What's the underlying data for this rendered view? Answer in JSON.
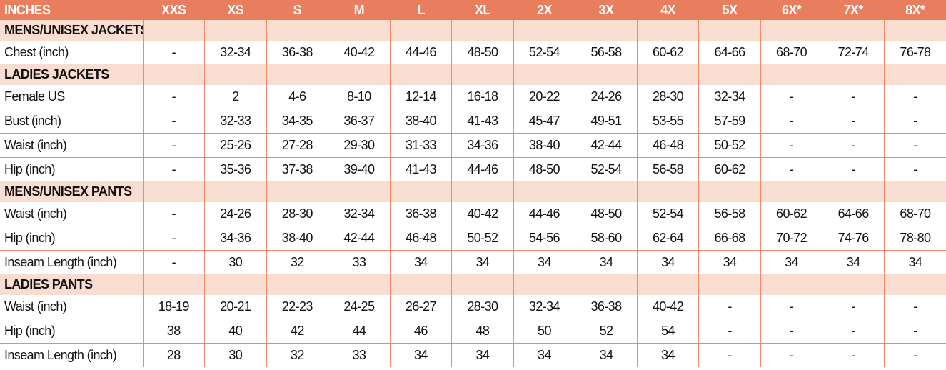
{
  "header": {
    "label": "INCHES",
    "sizes": [
      "XXS",
      "XS",
      "S",
      "M",
      "L",
      "XL",
      "2X",
      "3X",
      "4X",
      "5X",
      "6X*",
      "7X*",
      "8X*"
    ]
  },
  "colors": {
    "header_bg": "#E97E5E",
    "section_bg": "#FADDD1",
    "grid": "#EE8A70"
  },
  "sections": [
    {
      "title": "MENS/UNISEX JACKETS",
      "rows": [
        {
          "label": "Chest (inch)",
          "values": [
            "-",
            "32-34",
            "36-38",
            "40-42",
            "44-46",
            "48-50",
            "52-54",
            "56-58",
            "60-62",
            "64-66",
            "68-70",
            "72-74",
            "76-78"
          ]
        }
      ]
    },
    {
      "title": "LADIES JACKETS",
      "rows": [
        {
          "label": "Female US",
          "values": [
            "-",
            "2",
            "4-6",
            "8-10",
            "12-14",
            "16-18",
            "20-22",
            "24-26",
            "28-30",
            "32-34",
            "-",
            "-",
            "-"
          ]
        },
        {
          "label": "Bust (inch)",
          "values": [
            "-",
            "32-33",
            "34-35",
            "36-37",
            "38-40",
            "41-43",
            "45-47",
            "49-51",
            "53-55",
            "57-59",
            "-",
            "-",
            "-"
          ]
        },
        {
          "label": "Waist (inch)",
          "values": [
            "-",
            "25-26",
            "27-28",
            "29-30",
            "31-33",
            "34-36",
            "38-40",
            "42-44",
            "46-48",
            "50-52",
            "-",
            "-",
            "-"
          ]
        },
        {
          "label": "Hip (inch)",
          "values": [
            "-",
            "35-36",
            "37-38",
            "39-40",
            "41-43",
            "44-46",
            "48-50",
            "52-54",
            "56-58",
            "60-62",
            "-",
            "-",
            "-"
          ]
        }
      ]
    },
    {
      "title": "MENS/UNISEX PANTS",
      "rows": [
        {
          "label": "Waist (inch)",
          "values": [
            "-",
            "24-26",
            "28-30",
            "32-34",
            "36-38",
            "40-42",
            "44-46",
            "48-50",
            "52-54",
            "56-58",
            "60-62",
            "64-66",
            "68-70"
          ]
        },
        {
          "label": "Hip (inch)",
          "values": [
            "-",
            "34-36",
            "38-40",
            "42-44",
            "46-48",
            "50-52",
            "54-56",
            "58-60",
            "62-64",
            "66-68",
            "70-72",
            "74-76",
            "78-80"
          ]
        },
        {
          "label": "Inseam Length (inch)",
          "values": [
            "-",
            "30",
            "32",
            "33",
            "34",
            "34",
            "34",
            "34",
            "34",
            "34",
            "34",
            "34",
            "34"
          ]
        }
      ]
    },
    {
      "title": "LADIES PANTS",
      "rows": [
        {
          "label": "Waist (inch)",
          "values": [
            "18-19",
            "20-21",
            "22-23",
            "24-25",
            "26-27",
            "28-30",
            "32-34",
            "36-38",
            "40-42",
            "-",
            "-",
            "-",
            "-"
          ]
        },
        {
          "label": "Hip (inch)",
          "values": [
            "38",
            "40",
            "42",
            "44",
            "46",
            "48",
            "50",
            "52",
            "54",
            "-",
            "-",
            "-",
            "-"
          ]
        },
        {
          "label": "Inseam Length (inch)",
          "values": [
            "28",
            "30",
            "32",
            "33",
            "34",
            "34",
            "34",
            "34",
            "34",
            "-",
            "-",
            "-",
            "-"
          ]
        }
      ]
    }
  ]
}
